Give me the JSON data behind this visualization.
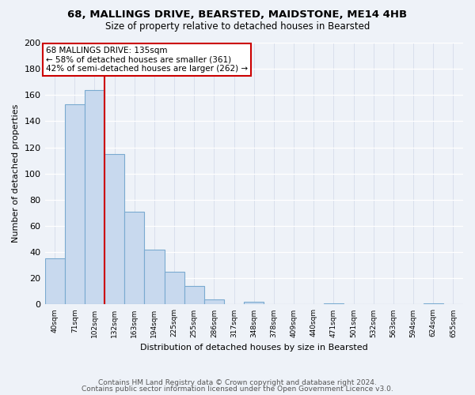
{
  "title1": "68, MALLINGS DRIVE, BEARSTED, MAIDSTONE, ME14 4HB",
  "title2": "Size of property relative to detached houses in Bearsted",
  "xlabel": "Distribution of detached houses by size in Bearsted",
  "ylabel": "Number of detached properties",
  "bin_labels": [
    "40sqm",
    "71sqm",
    "102sqm",
    "132sqm",
    "163sqm",
    "194sqm",
    "225sqm",
    "255sqm",
    "286sqm",
    "317sqm",
    "348sqm",
    "378sqm",
    "409sqm",
    "440sqm",
    "471sqm",
    "501sqm",
    "532sqm",
    "563sqm",
    "594sqm",
    "624sqm",
    "655sqm"
  ],
  "bar_values": [
    35,
    153,
    164,
    115,
    71,
    42,
    25,
    14,
    4,
    0,
    2,
    0,
    0,
    0,
    1,
    0,
    0,
    0,
    0,
    1,
    0
  ],
  "bar_color": "#c8d9ee",
  "bar_edge_color": "#7aaad0",
  "vline_x_idx": 3,
  "vline_color": "#cc0000",
  "annotation_box_facecolor": "#ffffff",
  "annotation_border_color": "#cc0000",
  "annotation_text1": "68 MALLINGS DRIVE: 135sqm",
  "annotation_text2": "← 58% of detached houses are smaller (361)",
  "annotation_text3": "42% of semi-detached houses are larger (262) →",
  "ylim": [
    0,
    200
  ],
  "yticks": [
    0,
    20,
    40,
    60,
    80,
    100,
    120,
    140,
    160,
    180,
    200
  ],
  "footer1": "Contains HM Land Registry data © Crown copyright and database right 2024.",
  "footer2": "Contains public sector information licensed under the Open Government Licence v3.0.",
  "bg_color": "#eef2f8",
  "grid_color": "#d0d8e8"
}
